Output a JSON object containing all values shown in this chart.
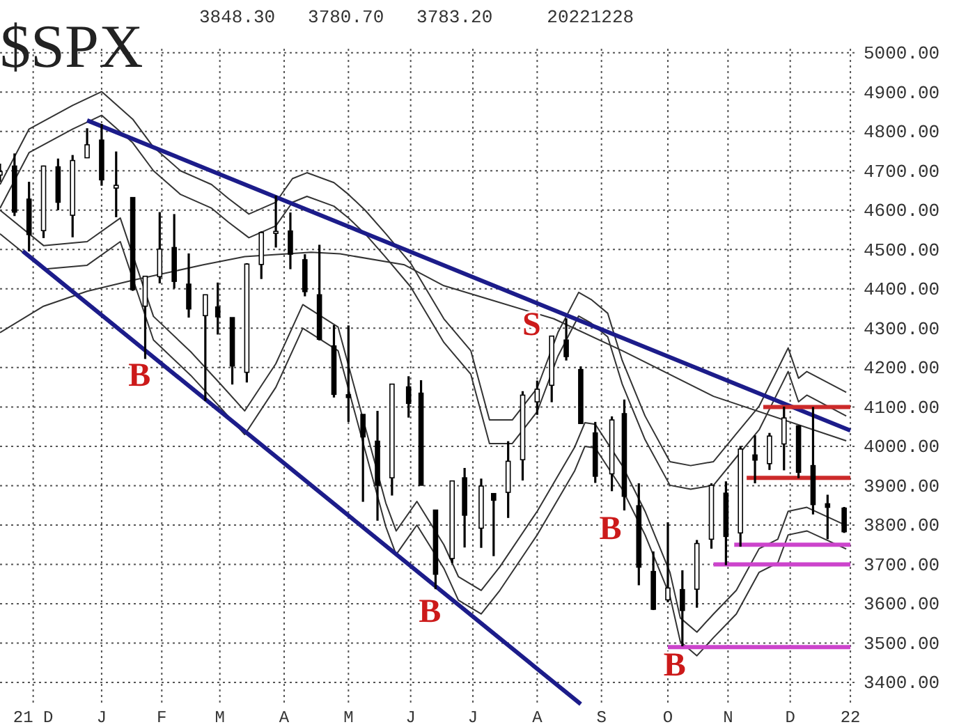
{
  "chart_data": {
    "type": "candlestick",
    "title": "$SPX",
    "subtitle": "3848.30   3780.70   3783.20     20221228",
    "x": [
      "2021-11-15",
      "2021-11-22",
      "2021-11-29",
      "2021-12-06",
      "2021-12-13",
      "2021-12-20",
      "2021-12-27",
      "2022-01-03",
      "2022-01-10",
      "2022-01-18",
      "2022-01-24",
      "2022-01-31",
      "2022-02-07",
      "2022-02-14",
      "2022-02-22",
      "2022-02-28",
      "2022-03-07",
      "2022-03-14",
      "2022-03-21",
      "2022-03-28",
      "2022-04-04",
      "2022-04-11",
      "2022-04-18",
      "2022-04-25",
      "2022-05-02",
      "2022-05-09",
      "2022-05-16",
      "2022-05-23",
      "2022-05-31",
      "2022-06-06",
      "2022-06-13",
      "2022-06-21",
      "2022-06-27",
      "2022-07-05",
      "2022-07-11",
      "2022-07-18",
      "2022-07-25",
      "2022-08-01",
      "2022-08-08",
      "2022-08-15",
      "2022-08-22",
      "2022-08-29",
      "2022-09-06",
      "2022-09-12",
      "2022-09-19",
      "2022-09-26",
      "2022-10-03",
      "2022-10-10",
      "2022-10-17",
      "2022-10-24",
      "2022-10-31",
      "2022-11-07",
      "2022-11-14",
      "2022-11-21",
      "2022-11-28",
      "2022-12-05",
      "2022-12-12",
      "2022-12-19",
      "2022-12-27"
    ],
    "ohlc": [
      [
        4689,
        4718,
        4672,
        4698
      ],
      [
        4712,
        4744,
        4585,
        4595
      ],
      [
        4628,
        4672,
        4495,
        4538
      ],
      [
        4548,
        4713,
        4529,
        4712
      ],
      [
        4710,
        4731,
        4600,
        4620
      ],
      [
        4587,
        4740,
        4531,
        4726
      ],
      [
        4733,
        4808,
        4733,
        4766
      ],
      [
        4778,
        4819,
        4662,
        4677
      ],
      [
        4656,
        4749,
        4582,
        4663
      ],
      [
        4632,
        4632,
        4395,
        4398
      ],
      [
        4356,
        4432,
        4222,
        4432
      ],
      [
        4431,
        4595,
        4414,
        4501
      ],
      [
        4505,
        4590,
        4401,
        4419
      ],
      [
        4412,
        4490,
        4327,
        4349
      ],
      [
        4332,
        4385,
        4115,
        4385
      ],
      [
        4354,
        4416,
        4284,
        4329
      ],
      [
        4327,
        4327,
        4157,
        4204
      ],
      [
        4188,
        4465,
        4162,
        4463
      ],
      [
        4462,
        4546,
        4425,
        4543
      ],
      [
        4541,
        4637,
        4505,
        4546
      ],
      [
        4547,
        4594,
        4450,
        4488
      ],
      [
        4474,
        4488,
        4381,
        4393
      ],
      [
        4385,
        4512,
        4269,
        4272
      ],
      [
        4255,
        4308,
        4124,
        4132
      ],
      [
        4131,
        4307,
        4062,
        4124
      ],
      [
        4081,
        4081,
        3859,
        4024
      ],
      [
        4013,
        4090,
        3811,
        3901
      ],
      [
        3920,
        4158,
        3875,
        4158
      ],
      [
        4151,
        4178,
        4073,
        4109
      ],
      [
        4135,
        4168,
        3901,
        3901
      ],
      [
        3838,
        3838,
        3637,
        3675
      ],
      [
        3715,
        3913,
        3703,
        3912
      ],
      [
        3920,
        3945,
        3743,
        3825
      ],
      [
        3792,
        3918,
        3742,
        3899
      ],
      [
        3880,
        3880,
        3721,
        3863
      ],
      [
        3883,
        4013,
        3818,
        3962
      ],
      [
        3966,
        4140,
        3913,
        4130
      ],
      [
        4113,
        4167,
        4080,
        4145
      ],
      [
        4155,
        4280,
        4112,
        4280
      ],
      [
        4270,
        4325,
        4218,
        4228
      ],
      [
        4195,
        4203,
        4057,
        4058
      ],
      [
        4034,
        4062,
        3907,
        3924
      ],
      [
        3930,
        4076,
        3886,
        4067
      ],
      [
        4083,
        4119,
        3837,
        3873
      ],
      [
        3849,
        3906,
        3647,
        3693
      ],
      [
        3682,
        3733,
        3584,
        3586
      ],
      [
        3610,
        3807,
        3604,
        3640
      ],
      [
        3636,
        3685,
        3492,
        3583
      ],
      [
        3637,
        3762,
        3590,
        3753
      ],
      [
        3764,
        3906,
        3740,
        3901
      ],
      [
        3881,
        3911,
        3698,
        3771
      ],
      [
        3780,
        4001,
        3745,
        3993
      ],
      [
        3978,
        4028,
        3906,
        3965
      ],
      [
        3956,
        4034,
        3940,
        4026
      ],
      [
        4006,
        4101,
        3939,
        4072
      ],
      [
        4052,
        4052,
        3919,
        3934
      ],
      [
        3951,
        4100,
        3827,
        3852
      ],
      [
        3854,
        3877,
        3764,
        3845
      ],
      [
        3843,
        3846,
        3780,
        3783
      ]
    ],
    "series": [
      {
        "type": "line",
        "color": "#333333",
        "x": [
          "2021-11-15",
          "2021-11-29",
          "2021-12-20",
          "2022-01-03",
          "2022-01-18",
          "2022-01-28",
          "2022-02-10",
          "2022-02-25",
          "2022-03-05",
          "2022-03-15",
          "2022-03-28",
          "2022-04-05",
          "2022-04-12",
          "2022-04-25",
          "2022-05-02",
          "2022-05-10",
          "2022-05-20",
          "2022-06-01",
          "2022-06-17",
          "2022-06-30",
          "2022-07-09",
          "2022-07-20",
          "2022-08-01",
          "2022-08-11",
          "2022-08-21",
          "2022-08-27",
          "2022-09-04",
          "2022-09-11",
          "2022-09-22",
          "2022-10-04",
          "2022-10-14",
          "2022-10-25",
          "2022-11-05",
          "2022-11-16",
          "2022-11-27",
          "2022-11-30",
          "2022-12-05",
          "2022-12-09",
          "2022-12-28"
        ],
        "values": [
          4665,
          4806,
          4866,
          4901,
          4831,
          4760,
          4700,
          4665,
          4630,
          4590,
          4620,
          4680,
          4695,
          4670,
          4640,
          4600,
          4540,
          4465,
          4324,
          4243,
          4067,
          4067,
          4148,
          4289,
          4391,
          4373,
          4338,
          4218,
          4077,
          3961,
          3951,
          3961,
          4032,
          4102,
          4218,
          4250,
          4173,
          4190,
          4137
        ]
      },
      {
        "type": "line",
        "color": "#333333",
        "x": [
          "2021-11-15",
          "2021-11-29",
          "2021-12-20",
          "2022-01-03",
          "2022-01-18",
          "2022-01-28",
          "2022-02-10",
          "2022-02-25",
          "2022-03-05",
          "2022-03-15",
          "2022-03-28",
          "2022-04-05",
          "2022-04-12",
          "2022-04-25",
          "2022-05-02",
          "2022-05-10",
          "2022-05-20",
          "2022-06-01",
          "2022-06-17",
          "2022-06-30",
          "2022-07-09",
          "2022-07-20",
          "2022-08-01",
          "2022-08-11",
          "2022-08-21",
          "2022-08-27",
          "2022-09-04",
          "2022-09-11",
          "2022-09-22",
          "2022-10-04",
          "2022-10-14",
          "2022-10-25",
          "2022-11-05",
          "2022-11-16",
          "2022-11-27",
          "2022-11-30",
          "2022-12-05",
          "2022-12-09",
          "2022-12-28"
        ],
        "values": [
          4605,
          4746,
          4806,
          4841,
          4771,
          4700,
          4640,
          4605,
          4570,
          4530,
          4560,
          4620,
          4635,
          4610,
          4580,
          4540,
          4480,
          4405,
          4264,
          4183,
          4007,
          4007,
          4088,
          4229,
          4331,
          4313,
          4278,
          4158,
          4017,
          3901,
          3891,
          3901,
          3972,
          4042,
          4158,
          4190,
          4113,
          4130,
          4077
        ]
      },
      {
        "type": "line",
        "color": "#333333",
        "x": [
          "2021-11-15",
          "2021-12-06",
          "2021-12-27",
          "2022-01-12",
          "2022-01-28",
          "2022-02-15",
          "2022-03-01",
          "2022-03-13",
          "2022-03-28",
          "2022-04-10",
          "2022-04-27",
          "2022-05-20",
          "2022-05-25",
          "2022-06-04",
          "2022-06-17",
          "2022-06-24",
          "2022-07-05",
          "2022-07-14",
          "2022-08-01",
          "2022-08-19",
          "2022-08-24",
          "2022-08-29",
          "2022-09-11",
          "2022-09-22",
          "2022-10-04",
          "2022-10-09",
          "2022-10-17",
          "2022-10-25",
          "2022-11-05",
          "2022-11-16",
          "2022-11-25",
          "2022-11-30",
          "2022-12-09",
          "2022-12-28"
        ],
        "values": [
          4600,
          4510,
          4520,
          4580,
          4330,
          4240,
          4160,
          4090,
          4210,
          4360,
          4303,
          3856,
          3785,
          3860,
          3750,
          3669,
          3634,
          3694,
          3835,
          3997,
          4060,
          4056,
          3951,
          3835,
          3680,
          3564,
          3528,
          3574,
          3634,
          3740,
          3764,
          3835,
          3845,
          3799
        ]
      },
      {
        "type": "line",
        "color": "#333333",
        "x": [
          "2021-11-15",
          "2021-12-06",
          "2021-12-27",
          "2022-01-12",
          "2022-01-28",
          "2022-02-15",
          "2022-03-01",
          "2022-03-13",
          "2022-03-28",
          "2022-04-10",
          "2022-04-27",
          "2022-05-20",
          "2022-05-25",
          "2022-06-04",
          "2022-06-17",
          "2022-06-24",
          "2022-07-05",
          "2022-07-14",
          "2022-08-01",
          "2022-08-19",
          "2022-08-24",
          "2022-08-29",
          "2022-09-11",
          "2022-09-22",
          "2022-10-04",
          "2022-10-09",
          "2022-10-17",
          "2022-10-25",
          "2022-11-05",
          "2022-11-16",
          "2022-11-25",
          "2022-11-30",
          "2022-12-09",
          "2022-12-28"
        ],
        "values": [
          4540,
          4450,
          4460,
          4520,
          4270,
          4180,
          4100,
          4030,
          4150,
          4300,
          4243,
          3796,
          3725,
          3800,
          3690,
          3609,
          3574,
          3634,
          3775,
          3937,
          4000,
          3996,
          3891,
          3775,
          3620,
          3504,
          3468,
          3514,
          3574,
          3680,
          3704,
          3775,
          3785,
          3739
        ]
      },
      {
        "type": "line",
        "color": "#333333",
        "x": [
          "2021-11-15",
          "2021-12-06",
          "2021-12-27",
          "2022-01-19",
          "2022-02-21",
          "2022-03-13",
          "2022-04-14",
          "2022-04-28",
          "2022-05-29",
          "2022-06-17",
          "2022-07-09",
          "2022-08-09",
          "2022-09-11",
          "2022-10-25",
          "2022-12-28"
        ],
        "values": [
          4289,
          4356,
          4394,
          4423,
          4461,
          4482,
          4493,
          4489,
          4461,
          4408,
          4373,
          4324,
          4243,
          4127,
          4014
        ]
      },
      {
        "type": "line",
        "color": "#1c1c8a",
        "x": [
          "2021-12-27",
          "2022-12-30"
        ],
        "values": [
          4828,
          4040
        ]
      },
      {
        "type": "line",
        "color": "#1c1c8a",
        "x": [
          "2021-11-26",
          "2022-08-22"
        ],
        "values": [
          4496,
          3345
        ]
      },
      {
        "type": "line",
        "color": "#cc2a2a",
        "x": [
          "2022-11-18",
          "2022-12-30"
        ],
        "values": [
          4100,
          4100
        ]
      },
      {
        "type": "line",
        "color": "#cc2a2a",
        "x": [
          "2022-11-10",
          "2022-12-30"
        ],
        "values": [
          3920,
          3920
        ]
      },
      {
        "type": "line",
        "color": "#cc44cc",
        "x": [
          "2022-11-04",
          "2022-12-30"
        ],
        "values": [
          3750,
          3750
        ]
      },
      {
        "type": "line",
        "color": "#cc44cc",
        "x": [
          "2022-10-25",
          "2022-12-30"
        ],
        "values": [
          3700,
          3700
        ]
      },
      {
        "type": "line",
        "color": "#cc44cc",
        "x": [
          "2022-10-03",
          "2022-12-30"
        ],
        "values": [
          3490,
          3490
        ]
      }
    ],
    "annotations": [
      {
        "text": "B",
        "x": "2022-01-28",
        "y": 4226
      },
      {
        "text": "B",
        "x": "2022-06-17",
        "y": 3627
      },
      {
        "text": "S",
        "x": "2022-08-05",
        "y": 4355
      },
      {
        "text": "B",
        "x": "2022-09-12",
        "y": 3837
      },
      {
        "text": "B",
        "x": "2022-10-13",
        "y": 3490
      }
    ],
    "xlim": [
      "2021-11-15",
      "2023-01-02"
    ],
    "xticks": [
      {
        "value": "2021-12-01",
        "label": "21 D"
      },
      {
        "value": "2022-01-03",
        "label": "J"
      },
      {
        "value": "2022-02-01",
        "label": "F"
      },
      {
        "value": "2022-03-01",
        "label": "M"
      },
      {
        "value": "2022-04-01",
        "label": "A"
      },
      {
        "value": "2022-05-02",
        "label": "M"
      },
      {
        "value": "2022-06-01",
        "label": "J"
      },
      {
        "value": "2022-07-01",
        "label": "J"
      },
      {
        "value": "2022-08-01",
        "label": "A"
      },
      {
        "value": "2022-09-01",
        "label": "S"
      },
      {
        "value": "2022-10-03",
        "label": "O"
      },
      {
        "value": "2022-11-01",
        "label": "N"
      },
      {
        "value": "2022-12-01",
        "label": "D"
      },
      {
        "value": "2022-12-30",
        "label": "22"
      }
    ],
    "ylim": [
      3340,
      5010
    ],
    "yticks": [
      {
        "value": 3400,
        "label": "3400.00"
      },
      {
        "value": 3500,
        "label": "3500.00"
      },
      {
        "value": 3600,
        "label": "3600.00"
      },
      {
        "value": 3700,
        "label": "3700.00"
      },
      {
        "value": 3800,
        "label": "3800.00"
      },
      {
        "value": 3900,
        "label": "3900.00"
      },
      {
        "value": 4000,
        "label": "4000.00"
      },
      {
        "value": 4100,
        "label": "4100.00"
      },
      {
        "value": 4200,
        "label": "4200.00"
      },
      {
        "value": 4300,
        "label": "4300.00"
      },
      {
        "value": 4400,
        "label": "4400.00"
      },
      {
        "value": 4500,
        "label": "4500.00"
      },
      {
        "value": 4600,
        "label": "4600.00"
      },
      {
        "value": 4700,
        "label": "4700.00"
      },
      {
        "value": 4800,
        "label": "4800.00"
      },
      {
        "value": 4900,
        "label": "4900.00"
      },
      {
        "value": 5000,
        "label": "5000.00"
      }
    ],
    "grid": true
  }
}
